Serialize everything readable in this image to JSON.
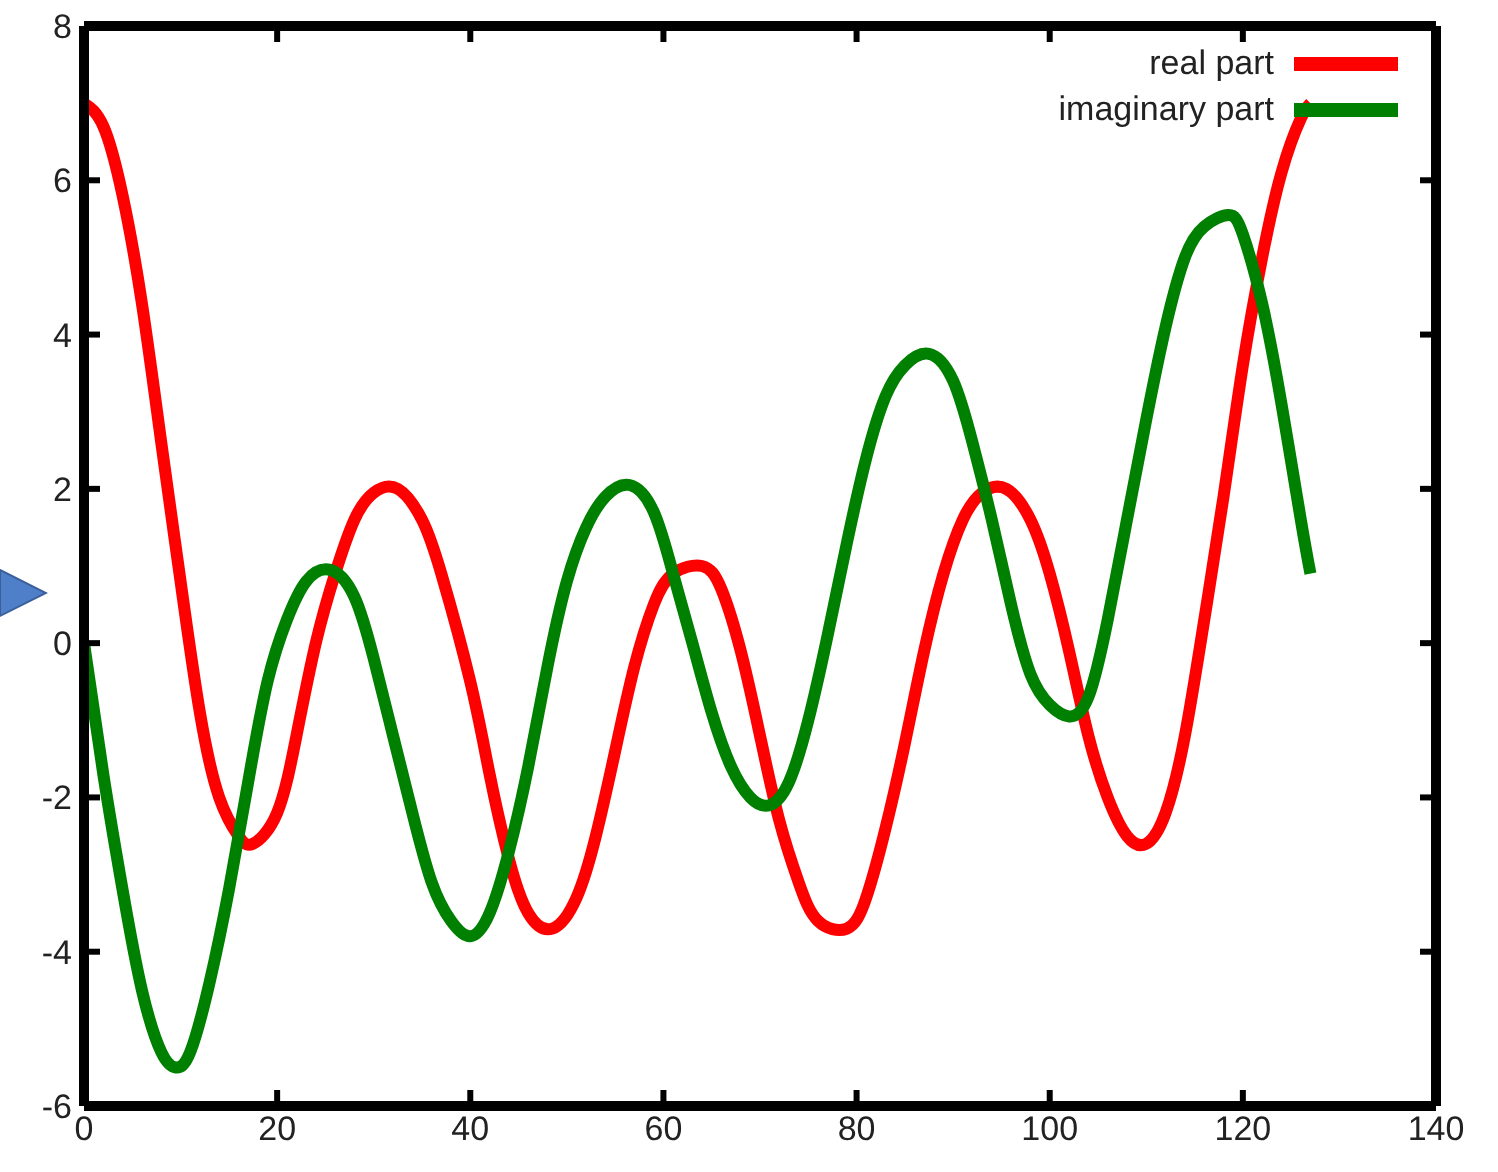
{
  "chart_data": {
    "type": "line",
    "xlim": [
      0,
      140
    ],
    "ylim": [
      -6,
      8
    ],
    "xticks": [
      0,
      20,
      40,
      60,
      80,
      100,
      120,
      140
    ],
    "yticks": [
      -6,
      -4,
      -2,
      0,
      2,
      4,
      6,
      8
    ],
    "grid": false,
    "legend": "top right",
    "line_style": "solid",
    "marker": "none",
    "series": [
      {
        "name": "real part",
        "color": "#ff0000",
        "x": [
          0,
          2,
          4,
          6,
          8,
          10,
          12,
          14,
          16,
          17.5,
          20,
          22,
          24,
          26,
          28,
          30,
          32.5,
          35,
          37,
          40,
          42,
          44,
          46,
          48.5,
          51,
          53,
          55,
          57,
          59,
          61,
          64,
          66,
          68,
          70,
          72,
          74,
          76,
          79,
          81,
          83,
          85,
          87,
          89,
          91,
          93,
          95.5,
          98,
          100,
          102,
          104,
          106,
          108,
          110,
          112,
          114,
          116,
          118,
          120,
          122,
          124,
          126,
          127
        ],
        "values": [
          7,
          6.7,
          5.8,
          4.4,
          2.6,
          0.8,
          -0.9,
          -2,
          -2.5,
          -2.6,
          -2.2,
          -1.2,
          0,
          0.9,
          1.6,
          1.95,
          2,
          1.6,
          0.9,
          -0.5,
          -1.7,
          -2.8,
          -3.5,
          -3.7,
          -3.3,
          -2.5,
          -1.4,
          -0.3,
          0.5,
          0.9,
          1,
          0.7,
          -0.1,
          -1.2,
          -2.3,
          -3.1,
          -3.6,
          -3.7,
          -3.3,
          -2.4,
          -1.3,
          -0.1,
          0.9,
          1.6,
          1.95,
          2,
          1.6,
          0.9,
          -0.1,
          -1.2,
          -2,
          -2.5,
          -2.6,
          -2.2,
          -1.2,
          0.3,
          1.9,
          3.6,
          5,
          6.1,
          6.8,
          7
        ]
      },
      {
        "name": "imaginary part",
        "color": "#008000",
        "x": [
          0,
          2,
          4,
          6,
          8,
          9.5,
          11,
          13,
          15,
          17,
          19,
          21,
          23,
          25.5,
          28,
          30,
          32,
          34,
          36,
          38,
          40,
          42,
          44,
          46,
          48,
          50,
          52,
          54,
          56.5,
          59,
          61,
          63,
          65,
          67,
          69,
          71,
          73,
          75,
          77,
          79,
          81,
          83,
          85,
          87.5,
          90,
          92,
          94,
          96,
          98,
          100,
          102,
          104,
          106,
          108,
          110,
          112,
          114,
          116,
          118.5,
          120,
          122,
          124,
          126,
          127
        ],
        "values": [
          0,
          -1.7,
          -3.2,
          -4.5,
          -5.3,
          -5.5,
          -5.3,
          -4.4,
          -3.2,
          -1.8,
          -0.5,
          0.3,
          0.8,
          0.95,
          0.6,
          -0.2,
          -1.2,
          -2.2,
          -3.1,
          -3.6,
          -3.8,
          -3.5,
          -2.7,
          -1.6,
          -0.3,
          0.8,
          1.5,
          1.9,
          2.05,
          1.7,
          0.9,
          0,
          -0.9,
          -1.6,
          -2,
          -2.1,
          -1.8,
          -1,
          0.1,
          1.3,
          2.4,
          3.2,
          3.6,
          3.75,
          3.4,
          2.6,
          1.6,
          0.5,
          -0.4,
          -0.8,
          -0.95,
          -0.7,
          0.3,
          1.6,
          2.9,
          4.1,
          5,
          5.4,
          5.55,
          5.3,
          4.4,
          3.1,
          1.6,
          0.9
        ]
      }
    ]
  }
}
